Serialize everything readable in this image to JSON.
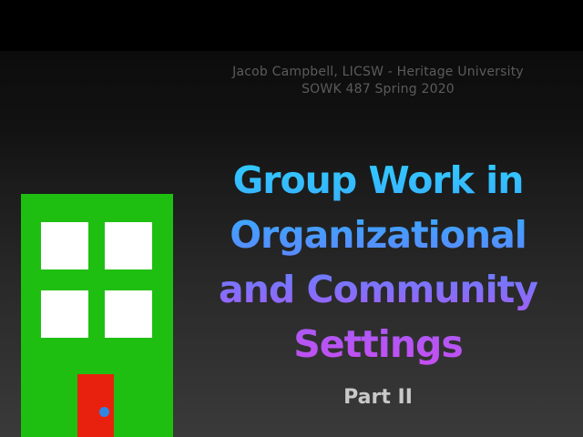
{
  "header": {
    "line1": "Jacob Campbell, LICSW - Heritage University",
    "line2": "SOWK 487 Spring 2020"
  },
  "title": {
    "lines": [
      "Group Work in",
      "Organizational",
      "and Community",
      "Settings"
    ]
  },
  "subtitle": "Part II",
  "illustration": {
    "building_color": "#1fbf12",
    "window_color": "#ffffff",
    "door_color": "#e8210e",
    "knob_color": "#2f86e3"
  },
  "colors": {
    "title_gradient": [
      "#2fd0ff",
      "#5f84ff",
      "#c94cf2"
    ],
    "header_text": "#5b5b5b",
    "subtitle_text": "#c8c8c8"
  }
}
